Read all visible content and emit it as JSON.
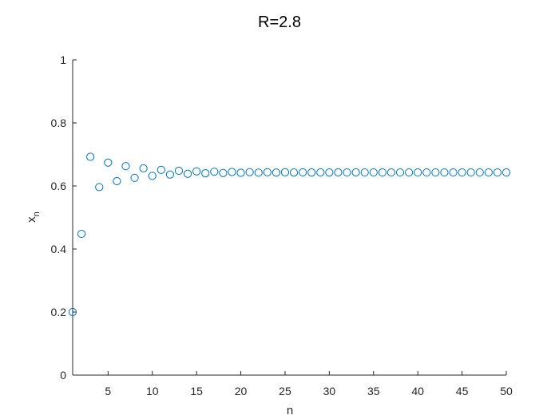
{
  "chart_data": {
    "type": "scatter",
    "title": "R=2.8",
    "xlabel": "n",
    "ylabel": "x",
    "ylabel_subscript": "n",
    "xlim": [
      1,
      50
    ],
    "ylim": [
      0,
      1
    ],
    "xticks": [
      5,
      10,
      15,
      20,
      25,
      30,
      35,
      40,
      45,
      50
    ],
    "xtick_labels": [
      "5",
      "10",
      "15",
      "20",
      "25",
      "30",
      "35",
      "40",
      "45",
      "50"
    ],
    "yticks": [
      0,
      0.2,
      0.4,
      0.6,
      0.8,
      1
    ],
    "ytick_labels": [
      "0",
      "0.2",
      "0.4",
      "0.6",
      "0.8",
      "1"
    ],
    "grid": false,
    "marker_color": "#0072BD",
    "series": [
      {
        "x": [
          1,
          2,
          3,
          4,
          5,
          6,
          7,
          8,
          9,
          10,
          11,
          12,
          13,
          14,
          15,
          16,
          17,
          18,
          19,
          20,
          21,
          22,
          23,
          24,
          25,
          26,
          27,
          28,
          29,
          30,
          31,
          32,
          33,
          34,
          35,
          36,
          37,
          38,
          39,
          40,
          41,
          42,
          43,
          44,
          45,
          46,
          47,
          48,
          49,
          50
        ],
        "values": [
          0.2,
          0.448,
          0.6924,
          0.5963,
          0.674,
          0.6152,
          0.6628,
          0.6258,
          0.6557,
          0.6321,
          0.6511,
          0.6361,
          0.6483,
          0.6386,
          0.6463,
          0.6401,
          0.6451,
          0.6412,
          0.6443,
          0.6418,
          0.6438,
          0.6422,
          0.6435,
          0.6425,
          0.6433,
          0.6427,
          0.6432,
          0.6428,
          0.6431,
          0.6428,
          0.643,
          0.6429,
          0.643,
          0.6429,
          0.6429,
          0.6429,
          0.6429,
          0.6429,
          0.6429,
          0.6429,
          0.6429,
          0.6429,
          0.6429,
          0.6429,
          0.6429,
          0.6429,
          0.6429,
          0.6429,
          0.6429,
          0.6429
        ]
      }
    ]
  }
}
